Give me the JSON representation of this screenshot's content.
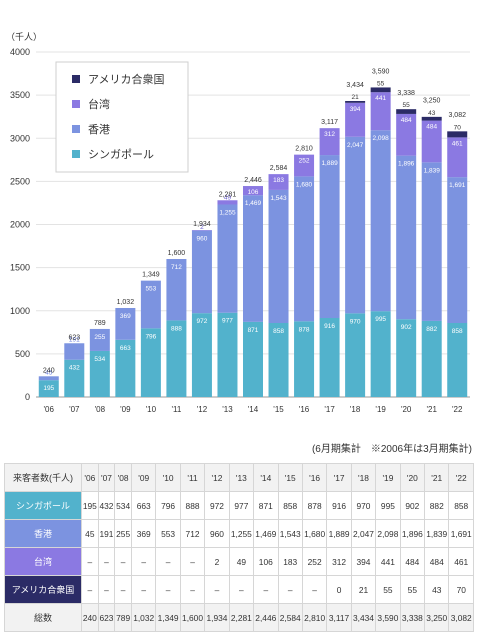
{
  "chart_data": {
    "type": "bar",
    "stacked": true,
    "unit_label": "（千人）",
    "categories": [
      "'06",
      "'07",
      "'08",
      "'09",
      "'10",
      "'11",
      "'12",
      "'13",
      "'14",
      "'15",
      "'16",
      "'17",
      "'18",
      "'19",
      "'20",
      "'21",
      "'22"
    ],
    "ylim": [
      0,
      4000
    ],
    "yticks": [
      0,
      500,
      1000,
      1500,
      2000,
      2500,
      3000,
      3500,
      4000
    ],
    "grid": true,
    "legend_position": "top-left",
    "series": [
      {
        "name": "シンガポール",
        "color": "#52b2cc",
        "values": [
          195,
          432,
          534,
          663,
          796,
          888,
          972,
          977,
          871,
          858,
          878,
          916,
          970,
          995,
          902,
          882,
          858
        ],
        "labels": [
          "195",
          "432",
          "534",
          "663",
          "796",
          "888",
          "972",
          "977",
          "871",
          "858",
          "878",
          "916",
          "970",
          "995",
          "902",
          "882",
          "858"
        ]
      },
      {
        "name": "香港",
        "color": "#7c93e0",
        "values": [
          45,
          191,
          255,
          369,
          553,
          712,
          960,
          1255,
          1469,
          1543,
          1680,
          1889,
          2047,
          2098,
          1896,
          1839,
          1691
        ],
        "labels": [
          "45",
          "191",
          "255",
          "369",
          "553",
          "712",
          "960",
          "1,255",
          "1,469",
          "1,543",
          "1,680",
          "1,889",
          "2,047",
          "2,098",
          "1,896",
          "1,839",
          "1,691"
        ]
      },
      {
        "name": "台湾",
        "color": "#8b79e2",
        "values": [
          0,
          0,
          0,
          0,
          0,
          0,
          2,
          49,
          106,
          183,
          252,
          312,
          394,
          441,
          484,
          484,
          461
        ],
        "labels": [
          "",
          "",
          "",
          "",
          "",
          "",
          "2",
          "49",
          "106",
          "183",
          "252",
          "312",
          "394",
          "441",
          "484",
          "484",
          "461"
        ]
      },
      {
        "name": "アメリカ合衆国",
        "color": "#2b2b66",
        "values": [
          0,
          0,
          0,
          0,
          0,
          0,
          0,
          0,
          0,
          0,
          0,
          0,
          21,
          55,
          55,
          43,
          70
        ],
        "labels": [
          "",
          "",
          "",
          "",
          "",
          "",
          "",
          "",
          "",
          "",
          "",
          "",
          "21",
          "55",
          "55",
          "43",
          "70"
        ]
      }
    ],
    "totals": [
      240,
      623,
      789,
      1032,
      1349,
      1600,
      1934,
      2281,
      2446,
      2584,
      2810,
      3117,
      3434,
      3590,
      3338,
      3250,
      3082
    ],
    "total_labels": [
      "240",
      "623",
      "789",
      "1,032",
      "1,349",
      "1,600",
      "1,934",
      "2,281",
      "2,446",
      "2,584",
      "2,810",
      "3,117",
      "3,434",
      "3,590",
      "3,338",
      "3,250",
      "3,082"
    ],
    "legend_order": [
      "アメリカ合衆国",
      "台湾",
      "香港",
      "シンガポール"
    ]
  },
  "note": "(6月期集計　※2006年は3月期集計)",
  "table": {
    "header_label": "来客者数(千人)",
    "years": [
      "'06",
      "'07",
      "'08",
      "'09",
      "'10",
      "'11",
      "'12",
      "'13",
      "'14",
      "'15",
      "'16",
      "'17",
      "'18",
      "'19",
      "'20",
      "'21",
      "'22"
    ],
    "rows": [
      {
        "label": "シンガポール",
        "cells": [
          "195",
          "432",
          "534",
          "663",
          "796",
          "888",
          "972",
          "977",
          "871",
          "858",
          "878",
          "916",
          "970",
          "995",
          "902",
          "882",
          "858"
        ]
      },
      {
        "label": "香港",
        "cells": [
          "45",
          "191",
          "255",
          "369",
          "553",
          "712",
          "960",
          "1,255",
          "1,469",
          "1,543",
          "1,680",
          "1,889",
          "2,047",
          "2,098",
          "1,896",
          "1,839",
          "1,691"
        ]
      },
      {
        "label": "台湾",
        "cells": [
          "–",
          "–",
          "–",
          "–",
          "–",
          "–",
          "2",
          "49",
          "106",
          "183",
          "252",
          "312",
          "394",
          "441",
          "484",
          "484",
          "461"
        ]
      },
      {
        "label": "アメリカ合衆国",
        "cells": [
          "–",
          "–",
          "–",
          "–",
          "–",
          "–",
          "–",
          "–",
          "–",
          "–",
          "–",
          "0",
          "21",
          "55",
          "55",
          "43",
          "70"
        ]
      }
    ],
    "total_row": {
      "label": "総数",
      "cells": [
        "240",
        "623",
        "789",
        "1,032",
        "1,349",
        "1,600",
        "1,934",
        "2,281",
        "2,446",
        "2,584",
        "2,810",
        "3,117",
        "3,434",
        "3,590",
        "3,338",
        "3,250",
        "3,082"
      ]
    }
  }
}
